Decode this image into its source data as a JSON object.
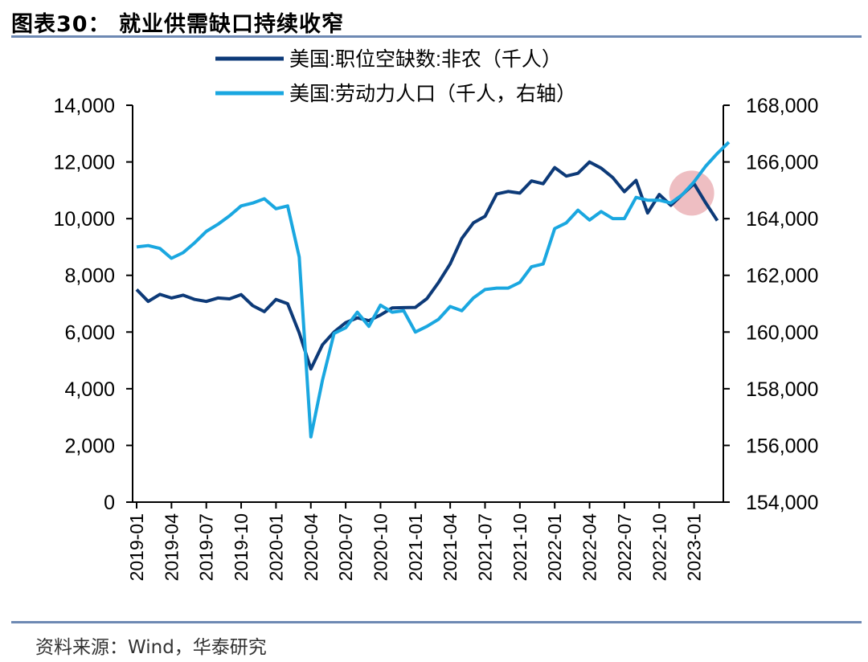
{
  "header": {
    "title": "图表30： 就业供需缺口持续收窄"
  },
  "footer": {
    "source": "资料来源：Wind，华泰研究"
  },
  "chart_data": {
    "type": "line",
    "x": [
      "2019-01",
      "2019-02",
      "2019-03",
      "2019-04",
      "2019-05",
      "2019-06",
      "2019-07",
      "2019-08",
      "2019-09",
      "2019-10",
      "2019-11",
      "2019-12",
      "2020-01",
      "2020-02",
      "2020-03",
      "2020-04",
      "2020-05",
      "2020-06",
      "2020-07",
      "2020-08",
      "2020-09",
      "2020-10",
      "2020-11",
      "2020-12",
      "2021-01",
      "2021-02",
      "2021-03",
      "2021-04",
      "2021-05",
      "2021-06",
      "2021-07",
      "2021-08",
      "2021-09",
      "2021-10",
      "2021-11",
      "2021-12",
      "2022-01",
      "2022-02",
      "2022-03",
      "2022-04",
      "2022-05",
      "2022-06",
      "2022-07",
      "2022-08",
      "2022-09",
      "2022-10",
      "2022-11",
      "2022-12",
      "2023-01",
      "2023-02",
      "2023-03",
      "2023-04"
    ],
    "x_ticks": [
      "2019-01",
      "2019-04",
      "2019-07",
      "2019-10",
      "2020-01",
      "2020-04",
      "2020-07",
      "2020-10",
      "2021-01",
      "2021-04",
      "2021-07",
      "2021-10",
      "2022-01",
      "2022-04",
      "2022-07",
      "2022-10",
      "2023-01"
    ],
    "series": [
      {
        "name": "美国:职位空缺数:非农（千人）",
        "axis": "left",
        "color": "#0d3a78",
        "values": [
          7500,
          7080,
          7330,
          7200,
          7300,
          7150,
          7080,
          7200,
          7170,
          7320,
          6930,
          6720,
          7150,
          7000,
          5970,
          4700,
          5550,
          6000,
          6330,
          6500,
          6400,
          6600,
          6850,
          6860,
          6870,
          7180,
          7750,
          8400,
          9300,
          9850,
          10080,
          10870,
          10960,
          10900,
          11330,
          11230,
          11800,
          11500,
          11600,
          12000,
          11780,
          11450,
          10950,
          11350,
          10200,
          10850,
          10470,
          10850,
          11230,
          10560,
          9930,
          null
        ]
      },
      {
        "name": "美国:劳动力人口（千人，右轴）",
        "axis": "right",
        "color": "#1aa7e0",
        "values": [
          163000,
          163050,
          162950,
          162600,
          162800,
          163150,
          163550,
          163800,
          164100,
          164450,
          164550,
          164700,
          164350,
          164450,
          162650,
          156300,
          158300,
          159950,
          160150,
          160700,
          160200,
          160950,
          160700,
          160750,
          160000,
          160200,
          160450,
          160900,
          160750,
          161200,
          161500,
          161550,
          161550,
          161750,
          162300,
          162400,
          163650,
          163850,
          164300,
          163950,
          164250,
          164000,
          164000,
          164750,
          164650,
          164650,
          164550,
          164850,
          165300,
          165850,
          166300,
          166700
        ]
      }
    ],
    "y_left": {
      "min": 0,
      "max": 14000,
      "ticks": [
        0,
        2000,
        4000,
        6000,
        8000,
        10000,
        12000,
        14000
      ],
      "tick_labels": [
        "0",
        "2,000",
        "4,000",
        "6,000",
        "8,000",
        "10,000",
        "12,000",
        "14,000"
      ]
    },
    "y_right": {
      "min": 154000,
      "max": 168000,
      "ticks": [
        154000,
        156000,
        158000,
        160000,
        162000,
        164000,
        166000,
        168000
      ],
      "tick_labels": [
        "154,000",
        "156,000",
        "158,000",
        "160,000",
        "162,000",
        "164,000",
        "166,000",
        "168,000"
      ]
    },
    "legend": {
      "position": "top-center",
      "items": [
        "美国:职位空缺数:非农（千人）",
        "美国:劳动力人口（千人，右轴）"
      ]
    },
    "annotations": [
      {
        "type": "highlight-circle",
        "x": "2023-01",
        "y_left": 10900,
        "color": "#e8a8ad"
      }
    ],
    "grid": false
  }
}
